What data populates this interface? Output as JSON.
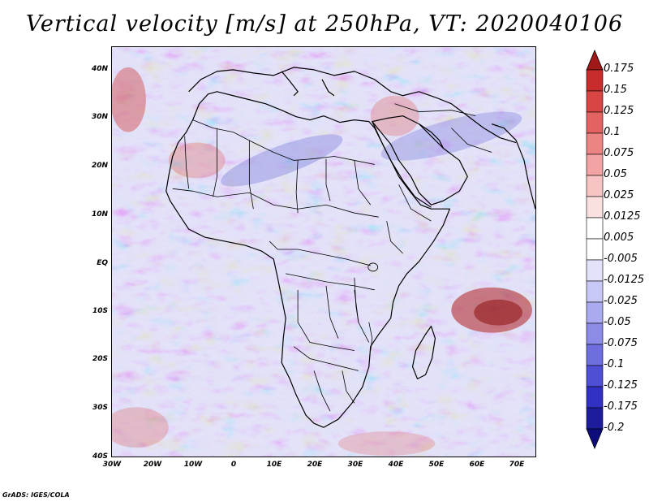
{
  "title": "Vertical velocity [m/s] at 250hPa, VT: 2020040106",
  "lat_labels": [
    "40N",
    "30N",
    "20N",
    "10N",
    "EQ",
    "10S",
    "20S",
    "30S",
    "40S"
  ],
  "lon_labels": [
    "30W",
    "20W",
    "10W",
    "0",
    "10E",
    "20E",
    "30E",
    "40E",
    "50E",
    "60E",
    "70E"
  ],
  "colorbar": {
    "levels": [
      "0.175",
      "0.15",
      "0.125",
      "0.1",
      "0.075",
      "0.05",
      "0.025",
      "0.0125",
      "0.005",
      "-0.005",
      "-0.0125",
      "-0.025",
      "-0.05",
      "-0.075",
      "-0.1",
      "-0.125",
      "-0.175",
      "-0.2"
    ],
    "colors": [
      "#a01818",
      "#c82c2c",
      "#d94444",
      "#e46262",
      "#ec8484",
      "#f2a4a4",
      "#f7c4c4",
      "#fbe0e0",
      "#ffffff",
      "#ffffff",
      "#e2e2fb",
      "#c8c8f6",
      "#aaaaf0",
      "#8c8ce8",
      "#6e6ee0",
      "#4e4ed6",
      "#3030c4",
      "#1c1c9c",
      "#0c0c7c"
    ]
  },
  "map": {
    "region": "Africa",
    "lat_range": [
      -40,
      45
    ],
    "lon_range": [
      -30,
      75
    ],
    "features": [
      "coastlines",
      "country-borders"
    ],
    "field": "Vertical velocity"
  },
  "credit": "GrADS: IGES/COLA"
}
